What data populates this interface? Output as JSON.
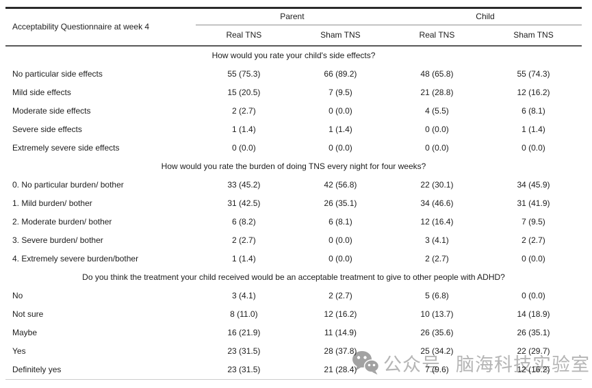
{
  "table": {
    "title": "Acceptability Questionnaire at week 4",
    "col_groups": [
      {
        "label": "Parent",
        "columns": [
          "Real TNS",
          "Sham TNS"
        ]
      },
      {
        "label": "Child",
        "columns": [
          "Real TNS",
          "Sham TNS"
        ]
      }
    ],
    "sections": [
      {
        "question": "How would you rate your child's side effects?",
        "rows": [
          {
            "label": "No particular side effects",
            "values": [
              "55 (75.3)",
              "66 (89.2)",
              "48 (65.8)",
              "55 (74.3)"
            ]
          },
          {
            "label": "Mild side effects",
            "values": [
              "15 (20.5)",
              "7 (9.5)",
              "21 (28.8)",
              "12 (16.2)"
            ]
          },
          {
            "label": "Moderate side effects",
            "values": [
              "2 (2.7)",
              "0 (0.0)",
              "4 (5.5)",
              "6 (8.1)"
            ]
          },
          {
            "label": "Severe side effects",
            "values": [
              "1 (1.4)",
              "1 (1.4)",
              "0 (0.0)",
              "1 (1.4)"
            ]
          },
          {
            "label": "Extremely severe side effects",
            "values": [
              "0 (0.0)",
              "0 (0.0)",
              "0 (0.0)",
              "0 (0.0)"
            ]
          }
        ]
      },
      {
        "question": "How would you rate the burden of doing TNS every night for four weeks?",
        "rows": [
          {
            "label": "0. No particular burden/ bother",
            "values": [
              "33 (45.2)",
              "42 (56.8)",
              "22 (30.1)",
              "34 (45.9)"
            ]
          },
          {
            "label": "1. Mild burden/ bother",
            "values": [
              "31 (42.5)",
              "26 (35.1)",
              "34 (46.6)",
              "31 (41.9)"
            ]
          },
          {
            "label": "2. Moderate burden/ bother",
            "values": [
              "6 (8.2)",
              "6 (8.1)",
              "12 (16.4)",
              "7 (9.5)"
            ]
          },
          {
            "label": "3. Severe burden/ bother",
            "values": [
              "2 (2.7)",
              "0 (0.0)",
              "3 (4.1)",
              "2 (2.7)"
            ]
          },
          {
            "label": "4. Extremely severe burden/bother",
            "values": [
              "1 (1.4)",
              "0 (0.0)",
              "2 (2.7)",
              "0 (0.0)"
            ]
          }
        ]
      },
      {
        "question": "Do you think the treatment your child received would be an acceptable treatment to give to other people with ADHD?",
        "rows": [
          {
            "label": "No",
            "values": [
              "3 (4.1)",
              "2 (2.7)",
              "5 (6.8)",
              "0 (0.0)"
            ]
          },
          {
            "label": "Not sure",
            "values": [
              "8 (11.0)",
              "12 (16.2)",
              "10 (13.7)",
              "14 (18.9)"
            ]
          },
          {
            "label": "Maybe",
            "values": [
              "16 (21.9)",
              "11 (14.9)",
              "26 (35.6)",
              "26 (35.1)"
            ]
          },
          {
            "label": "Yes",
            "values": [
              "23 (31.5)",
              "28 (37.8)",
              "25 (34.2)",
              "22 (29.7)"
            ]
          },
          {
            "label": "Definitely yes",
            "values": [
              "23 (31.5)",
              "21 (28.4)",
              "7 (9.6)",
              "12 (16.2)"
            ]
          }
        ]
      }
    ]
  },
  "watermark": {
    "icon": "wechat-icon",
    "prefix": "公众号",
    "name": "脑海科技实验室",
    "color": "#b5b5b5"
  }
}
